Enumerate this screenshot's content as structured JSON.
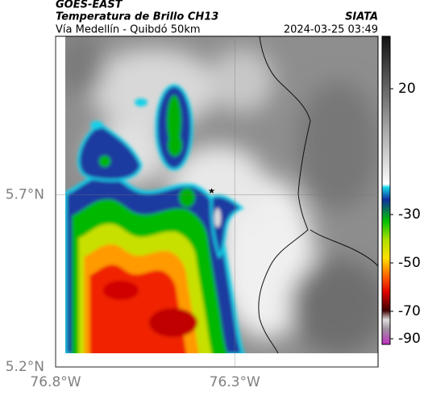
{
  "header": {
    "satellite": "GOES-EAST",
    "product": "Temperatura de Brillo CH13",
    "route": "Vía Medellín - Quibdó 50km",
    "source": "SIATA",
    "timestamp": "2024-03-25 03:49"
  },
  "map": {
    "latlim": [
      5.2,
      6.16
    ],
    "lonlim": [
      -76.8,
      -75.9
    ],
    "lat_ticks": [
      {
        "value": 5.7,
        "label": "5.7°N"
      },
      {
        "value": 5.2,
        "label": "5.2°N"
      }
    ],
    "lon_ticks": [
      {
        "value": -76.8,
        "label": "76.8°W"
      },
      {
        "value": -76.3,
        "label": "76.3°W"
      }
    ]
  },
  "colorbar": {
    "ticks": [
      20,
      -30,
      -50,
      -70,
      -90
    ]
  }
}
